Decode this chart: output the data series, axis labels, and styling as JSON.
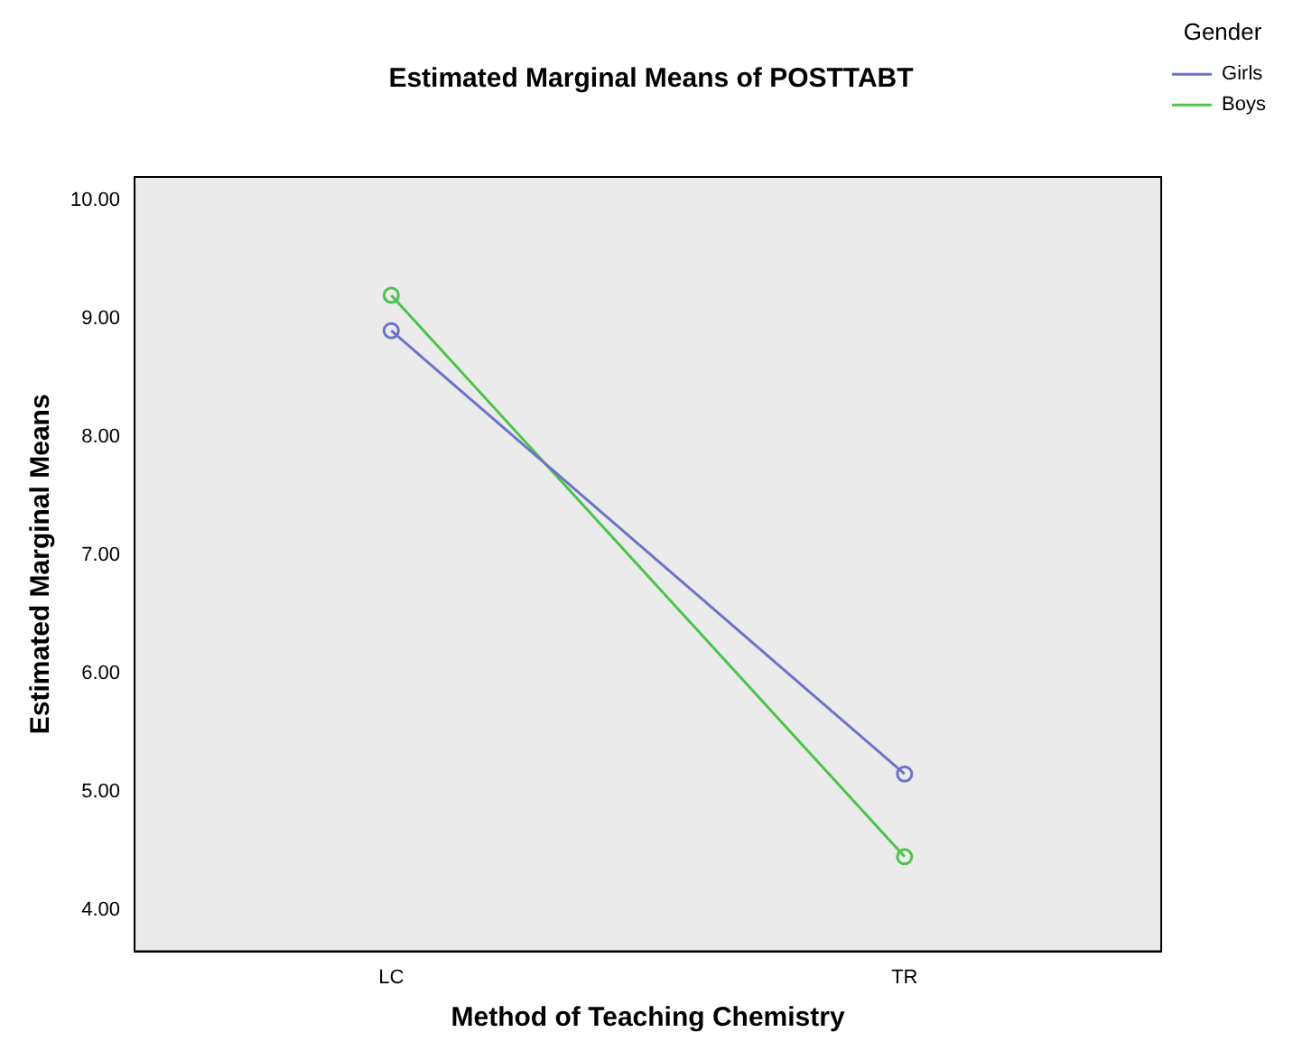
{
  "chart_data": {
    "type": "line",
    "title": "Estimated Marginal Means of POSTTABT",
    "xlabel": "Method of Teaching Chemistry",
    "ylabel": "Estimated Marginal Means",
    "legend_title": "Gender",
    "categories": [
      "LC",
      "TR"
    ],
    "series": [
      {
        "name": "Girls",
        "color": "#6c74c8",
        "values": [
          8.9,
          5.15
        ]
      },
      {
        "name": "Boys",
        "color": "#4cc44c",
        "values": [
          9.2,
          4.45
        ]
      }
    ],
    "ylim": [
      3.65,
      10.2
    ],
    "yticks": [
      {
        "value": 4,
        "label": "4.00"
      },
      {
        "value": 5,
        "label": "5.00"
      },
      {
        "value": 6,
        "label": "6.00"
      },
      {
        "value": 7,
        "label": "7.00"
      },
      {
        "value": 8,
        "label": "8.00"
      },
      {
        "value": 9,
        "label": "9.00"
      },
      {
        "value": 10,
        "label": "10.00"
      }
    ],
    "grid": false,
    "legend": "top right",
    "marker": "circle",
    "line_style": "solid"
  }
}
